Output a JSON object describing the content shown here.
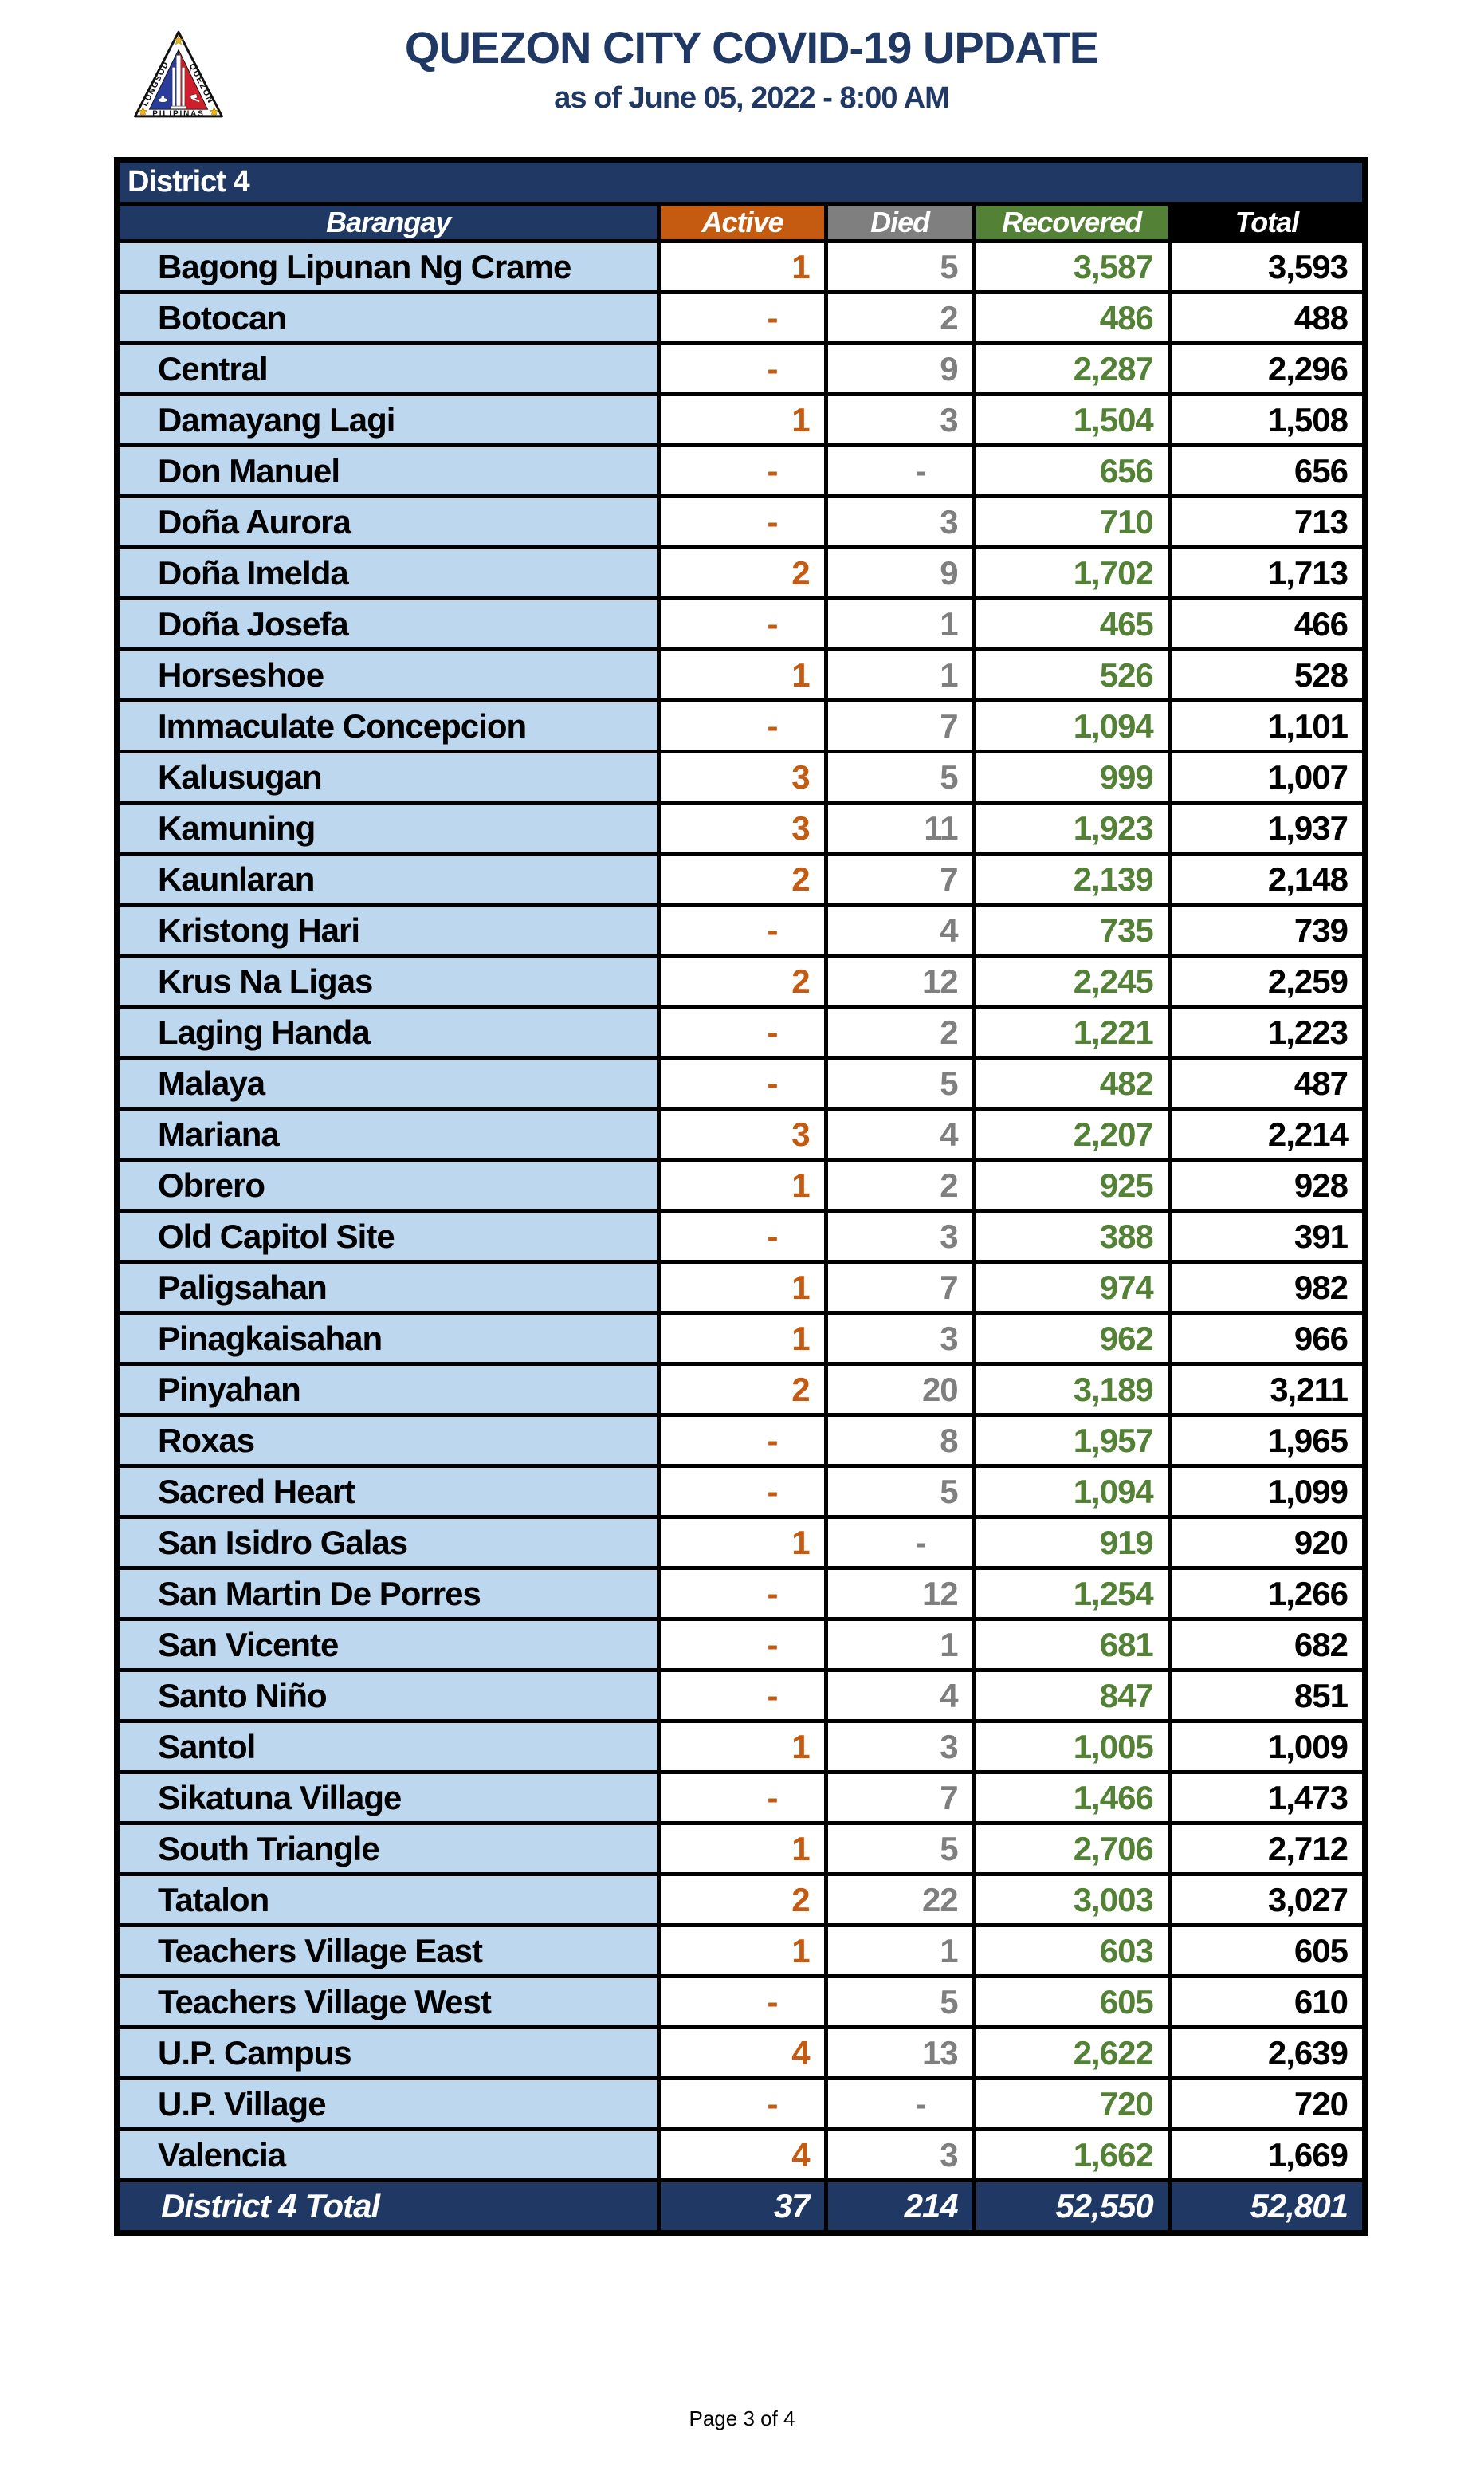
{
  "header": {
    "title": "QUEZON CITY COVID-19 UPDATE",
    "subtitle": "as of June 05, 2022 - 8:00 AM",
    "logo": {
      "left_text": "LUNGSOD",
      "right_text": "QUEZON",
      "bottom_text": "PILIPINAS"
    }
  },
  "table": {
    "district_label": "District 4",
    "columns": [
      "Barangay",
      "Active",
      "Died",
      "Recovered",
      "Total"
    ],
    "rows": [
      {
        "name": "Bagong Lipunan Ng Crame",
        "active": "1",
        "died": "5",
        "recovered": "3,587",
        "total": "3,593"
      },
      {
        "name": "Botocan",
        "active": "-",
        "died": "2",
        "recovered": "486",
        "total": "488"
      },
      {
        "name": "Central",
        "active": "-",
        "died": "9",
        "recovered": "2,287",
        "total": "2,296"
      },
      {
        "name": "Damayang Lagi",
        "active": "1",
        "died": "3",
        "recovered": "1,504",
        "total": "1,508"
      },
      {
        "name": "Don Manuel",
        "active": "-",
        "died": "-",
        "recovered": "656",
        "total": "656"
      },
      {
        "name": "Doña Aurora",
        "active": "-",
        "died": "3",
        "recovered": "710",
        "total": "713"
      },
      {
        "name": "Doña Imelda",
        "active": "2",
        "died": "9",
        "recovered": "1,702",
        "total": "1,713"
      },
      {
        "name": "Doña Josefa",
        "active": "-",
        "died": "1",
        "recovered": "465",
        "total": "466"
      },
      {
        "name": "Horseshoe",
        "active": "1",
        "died": "1",
        "recovered": "526",
        "total": "528"
      },
      {
        "name": "Immaculate Concepcion",
        "active": "-",
        "died": "7",
        "recovered": "1,094",
        "total": "1,101"
      },
      {
        "name": "Kalusugan",
        "active": "3",
        "died": "5",
        "recovered": "999",
        "total": "1,007"
      },
      {
        "name": "Kamuning",
        "active": "3",
        "died": "11",
        "recovered": "1,923",
        "total": "1,937"
      },
      {
        "name": "Kaunlaran",
        "active": "2",
        "died": "7",
        "recovered": "2,139",
        "total": "2,148"
      },
      {
        "name": "Kristong Hari",
        "active": "-",
        "died": "4",
        "recovered": "735",
        "total": "739"
      },
      {
        "name": "Krus Na Ligas",
        "active": "2",
        "died": "12",
        "recovered": "2,245",
        "total": "2,259"
      },
      {
        "name": "Laging Handa",
        "active": "-",
        "died": "2",
        "recovered": "1,221",
        "total": "1,223"
      },
      {
        "name": "Malaya",
        "active": "-",
        "died": "5",
        "recovered": "482",
        "total": "487"
      },
      {
        "name": "Mariana",
        "active": "3",
        "died": "4",
        "recovered": "2,207",
        "total": "2,214"
      },
      {
        "name": "Obrero",
        "active": "1",
        "died": "2",
        "recovered": "925",
        "total": "928"
      },
      {
        "name": "Old Capitol Site",
        "active": "-",
        "died": "3",
        "recovered": "388",
        "total": "391"
      },
      {
        "name": "Paligsahan",
        "active": "1",
        "died": "7",
        "recovered": "974",
        "total": "982"
      },
      {
        "name": "Pinagkaisahan",
        "active": "1",
        "died": "3",
        "recovered": "962",
        "total": "966"
      },
      {
        "name": "Pinyahan",
        "active": "2",
        "died": "20",
        "recovered": "3,189",
        "total": "3,211"
      },
      {
        "name": "Roxas",
        "active": "-",
        "died": "8",
        "recovered": "1,957",
        "total": "1,965"
      },
      {
        "name": "Sacred Heart",
        "active": "-",
        "died": "5",
        "recovered": "1,094",
        "total": "1,099"
      },
      {
        "name": "San Isidro Galas",
        "active": "1",
        "died": "-",
        "recovered": "919",
        "total": "920"
      },
      {
        "name": "San Martin De Porres",
        "active": "-",
        "died": "12",
        "recovered": "1,254",
        "total": "1,266"
      },
      {
        "name": "San Vicente",
        "active": "-",
        "died": "1",
        "recovered": "681",
        "total": "682"
      },
      {
        "name": "Santo Niño",
        "active": "-",
        "died": "4",
        "recovered": "847",
        "total": "851"
      },
      {
        "name": "Santol",
        "active": "1",
        "died": "3",
        "recovered": "1,005",
        "total": "1,009"
      },
      {
        "name": "Sikatuna Village",
        "active": "-",
        "died": "7",
        "recovered": "1,466",
        "total": "1,473"
      },
      {
        "name": "South Triangle",
        "active": "1",
        "died": "5",
        "recovered": "2,706",
        "total": "2,712"
      },
      {
        "name": "Tatalon",
        "active": "2",
        "died": "22",
        "recovered": "3,003",
        "total": "3,027"
      },
      {
        "name": "Teachers Village East",
        "active": "1",
        "died": "1",
        "recovered": "603",
        "total": "605"
      },
      {
        "name": "Teachers Village West",
        "active": "-",
        "died": "5",
        "recovered": "605",
        "total": "610"
      },
      {
        "name": "U.P. Campus",
        "active": "4",
        "died": "13",
        "recovered": "2,622",
        "total": "2,639"
      },
      {
        "name": "U.P. Village",
        "active": "-",
        "died": "-",
        "recovered": "720",
        "total": "720"
      },
      {
        "name": "Valencia",
        "active": "4",
        "died": "3",
        "recovered": "1,662",
        "total": "1,669"
      }
    ],
    "total_row": {
      "label": "District 4 Total",
      "active": "37",
      "died": "214",
      "recovered": "52,550",
      "total": "52,801"
    }
  },
  "footer": {
    "page_label": "Page 3 of 4"
  },
  "colors": {
    "navy": "#1F3864",
    "orange": "#C55A11",
    "gray": "#7F7F7F",
    "green": "#538135",
    "black": "#000000",
    "row_label_blue": "#BDD7EE",
    "title_text": "#1F3864",
    "logo_blue": "#2A3C9B",
    "logo_red": "#D01F2C",
    "logo_star_gold": "#F0B510"
  }
}
